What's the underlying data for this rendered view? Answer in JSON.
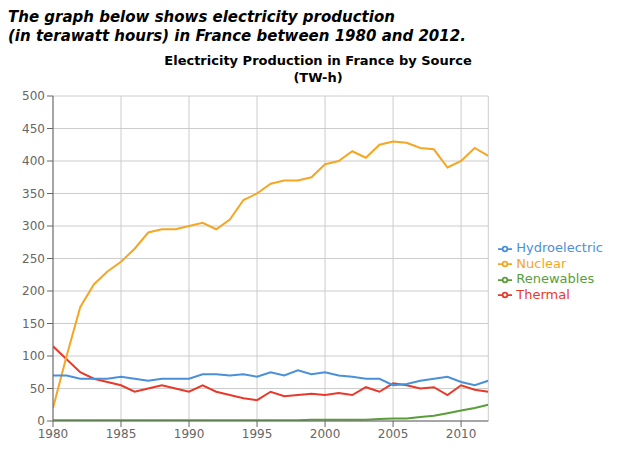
{
  "chart_data": {
    "type": "line",
    "title": "Electricity Production in France by Source\n(TW-h)",
    "subtitle": "The graph below shows electricity production\n(in terawatt hours) in France between 1980 and 2012.",
    "x": [
      1980,
      1981,
      1982,
      1983,
      1984,
      1985,
      1986,
      1987,
      1988,
      1989,
      1990,
      1991,
      1992,
      1993,
      1994,
      1995,
      1996,
      1997,
      1998,
      1999,
      2000,
      2001,
      2002,
      2003,
      2004,
      2005,
      2006,
      2007,
      2008,
      2009,
      2010,
      2011,
      2012
    ],
    "series": [
      {
        "name": "Thermal",
        "color": "#e8392a",
        "values": [
          115,
          95,
          75,
          65,
          60,
          55,
          45,
          50,
          55,
          50,
          45,
          55,
          45,
          40,
          35,
          32,
          45,
          38,
          40,
          42,
          40,
          43,
          40,
          52,
          45,
          58,
          55,
          50,
          52,
          40,
          55,
          48,
          45
        ]
      },
      {
        "name": "Nuclear",
        "color": "#f5a623",
        "values": [
          20,
          100,
          175,
          210,
          230,
          245,
          265,
          290,
          295,
          295,
          300,
          305,
          295,
          310,
          340,
          350,
          365,
          370,
          370,
          375,
          395,
          400,
          415,
          405,
          425,
          430,
          428,
          420,
          418,
          390,
          400,
          420,
          408
        ]
      },
      {
        "name": "Hydroelectric",
        "color": "#4a90d9",
        "values": [
          70,
          70,
          65,
          65,
          65,
          68,
          65,
          62,
          65,
          65,
          65,
          72,
          72,
          70,
          72,
          68,
          75,
          70,
          78,
          72,
          75,
          70,
          68,
          65,
          65,
          55,
          57,
          62,
          65,
          68,
          60,
          55,
          62
        ]
      },
      {
        "name": "Renewables",
        "color": "#5a9e3a",
        "values": [
          1,
          1,
          1,
          1,
          1,
          1,
          1,
          1,
          1,
          1,
          1,
          1,
          1,
          1,
          1,
          1,
          1,
          1,
          1,
          2,
          2,
          2,
          2,
          2,
          3,
          4,
          4,
          6,
          8,
          12,
          16,
          20,
          25
        ]
      }
    ],
    "xlim": [
      1980,
      2012
    ],
    "xticks": [
      1980,
      1985,
      1990,
      1995,
      2000,
      2005,
      2010
    ],
    "ylim": [
      0,
      500
    ],
    "yticks": [
      0,
      50,
      100,
      150,
      200,
      250,
      300,
      350,
      400,
      450,
      500
    ],
    "grid": true,
    "legend": "right"
  }
}
